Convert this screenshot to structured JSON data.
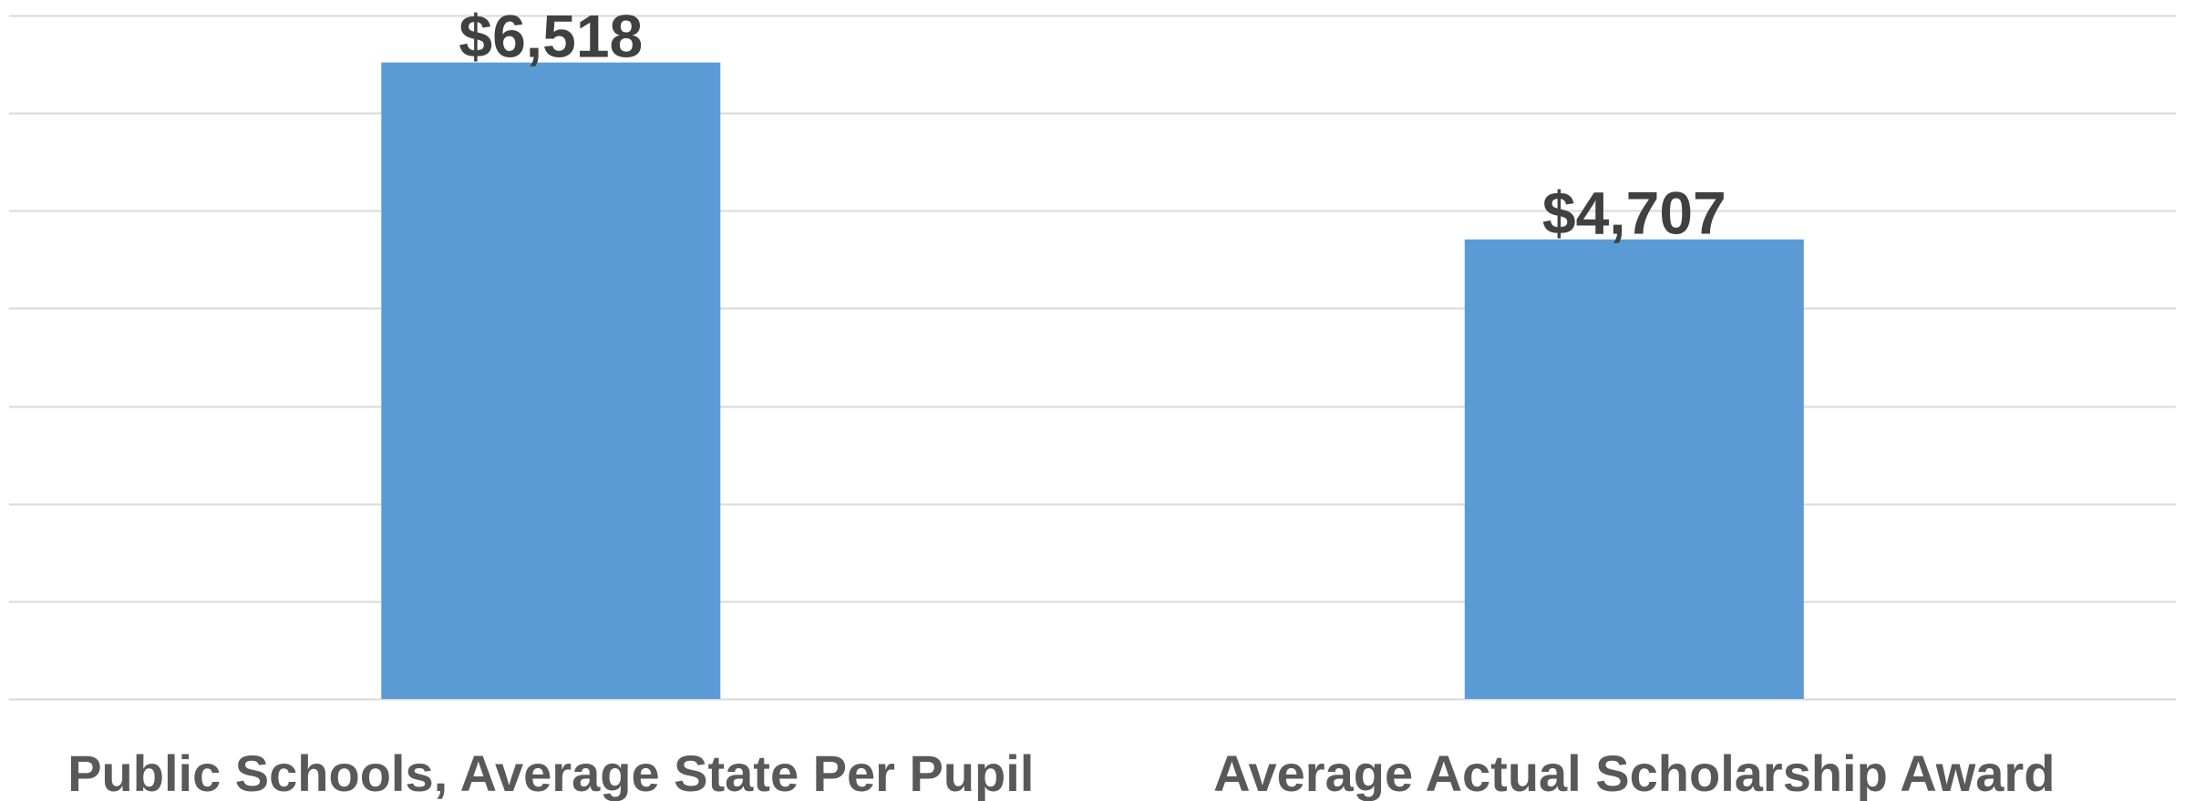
{
  "chart_data": {
    "type": "bar",
    "categories": [
      "Public Schools, Average State Per Pupil",
      "Average Actual Scholarship Award"
    ],
    "values": [
      6518,
      4707
    ],
    "data_labels": [
      "$6,518",
      "$4,707"
    ],
    "title": "",
    "xlabel": "",
    "ylabel": "",
    "ylim": [
      0,
      7000
    ],
    "y_tick_step": 1000,
    "y_tick_labels_visible": false,
    "grid": true,
    "legend": "none",
    "colors": {
      "bar": "#5b9bd5",
      "gridline": "#d9d9d9",
      "data_label": "#404040",
      "category_label": "#595959"
    }
  }
}
